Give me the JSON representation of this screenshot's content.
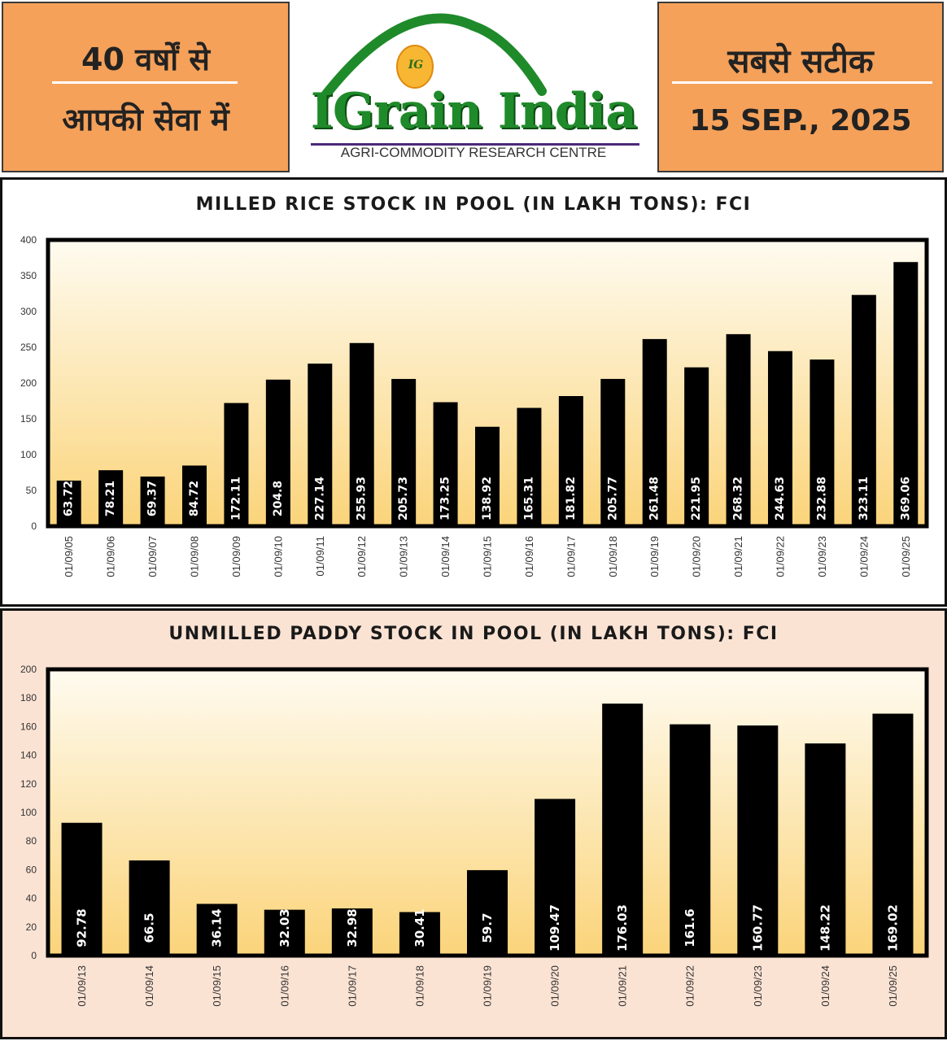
{
  "header": {
    "left_line1": "40 वर्षों से",
    "left_line2": "आपकी सेवा में",
    "brand": "IGrain India",
    "brand_badge": "IG",
    "brand_subtitle": "AGRI-COMMODITY RESEARCH CENTRE",
    "right_line1": "सबसे सटीक",
    "date": "15 SEP., 2025"
  },
  "colors": {
    "header_orange": "#f5a15a",
    "brand_green": "#1f8a2a",
    "bar": "#000000",
    "plot_top": "#fefbf0",
    "plot_bottom": "#fbd47a",
    "panel2_bg": "#fbe3d4"
  },
  "chart_data": [
    {
      "type": "bar",
      "title": "MILLED RICE STOCK IN POOL (IN LAKH TONS): FCI",
      "categories": [
        "01/09/05",
        "01/09/06",
        "01/09/07",
        "01/09/08",
        "01/09/09",
        "01/09/10",
        "01/09/11",
        "01/09/12",
        "01/09/13",
        "01/09/14",
        "01/09/15",
        "01/09/16",
        "01/09/17",
        "01/09/18",
        "01/09/19",
        "01/09/20",
        "01/09/21",
        "01/09/22",
        "01/09/23",
        "01/09/24",
        "01/09/25"
      ],
      "values": [
        63.72,
        78.21,
        69.37,
        84.72,
        172.11,
        204.8,
        227.14,
        255.93,
        205.73,
        173.25,
        138.92,
        165.31,
        181.82,
        205.77,
        261.48,
        221.95,
        268.32,
        244.63,
        232.88,
        323.11,
        369.06
      ],
      "ylim": [
        0,
        400
      ],
      "yticks": [
        0,
        50,
        100,
        150,
        200,
        250,
        300,
        350,
        400
      ],
      "data_labels": "inside-bar-rotated",
      "grid": false,
      "legend": "none"
    },
    {
      "type": "bar",
      "title": "UNMILLED PADDY STOCK IN POOL (IN LAKH TONS): FCI",
      "categories": [
        "01/09/13",
        "01/09/14",
        "01/09/15",
        "01/09/16",
        "01/09/17",
        "01/09/18",
        "01/09/19",
        "01/09/20",
        "01/09/21",
        "01/09/22",
        "01/09/23",
        "01/09/24",
        "01/09/25"
      ],
      "values": [
        92.78,
        66.5,
        36.14,
        32.03,
        32.98,
        30.41,
        59.7,
        109.47,
        176.03,
        161.6,
        160.77,
        148.22,
        169.02
      ],
      "ylim": [
        0,
        200
      ],
      "yticks": [
        0,
        20,
        40,
        60,
        80,
        100,
        120,
        140,
        160,
        180,
        200
      ],
      "data_labels": "inside-bar-rotated",
      "grid": false,
      "legend": "none"
    }
  ]
}
